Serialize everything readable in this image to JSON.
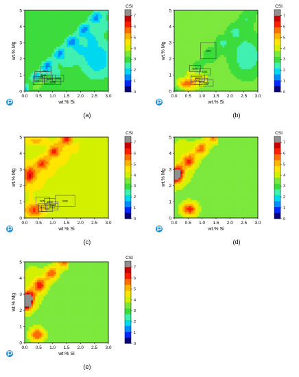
{
  "colors": {
    "scale": [
      "#08007a",
      "#0028ff",
      "#008cff",
      "#00d8f0",
      "#40f0b0",
      "#3cdc3c",
      "#7ce83c",
      "#d2f000",
      "#ffe600",
      "#ffb400",
      "#ff6e00",
      "#ff1e00",
      "#c80000",
      "#909090"
    ]
  },
  "chart_data": [
    {
      "type": "heatmap",
      "panel_label": "(a)",
      "xlabel": "wt.% Si",
      "ylabel": "wt.% Mg",
      "xlim": [
        0,
        3.0
      ],
      "ylim": [
        0,
        5
      ],
      "x_ticks": [
        "0.0",
        "0.5",
        "1.0",
        "1.5",
        "2.0",
        "2.5",
        "3.0"
      ],
      "y_ticks": [
        "0",
        "1",
        "2",
        "3",
        "4",
        "5"
      ],
      "colorbar_title": "CSI",
      "colorbar_range": [
        0,
        7
      ],
      "colorbar_ticks": [
        "0",
        "1",
        "2",
        "3",
        "4",
        "5",
        "6",
        "7"
      ],
      "base_value": 3.2,
      "features": [
        {
          "kind": "ridge",
          "slope": 1.73,
          "intercept": 0.2,
          "width": 0.17,
          "amp": -1.8,
          "extent": [
            0.0,
            3.0
          ]
        },
        {
          "kind": "ridge",
          "slope": 1.73,
          "intercept": -0.75,
          "width": 0.25,
          "amp": -0.9,
          "extent": [
            0.4,
            3.0
          ]
        },
        {
          "kind": "blob",
          "cx": 2.6,
          "cy": 2.0,
          "sx": 0.45,
          "sy": 0.9,
          "amp": -1.6
        },
        {
          "kind": "blob",
          "cx": 0.5,
          "cy": 0.5,
          "sx": 0.25,
          "sy": 0.3,
          "amp": 1.2
        }
      ],
      "boxes": [
        {
          "label": "6063",
          "x": [
            0.3,
            0.65
          ],
          "y": [
            0.4,
            0.9
          ]
        },
        {
          "label": "6005",
          "x": [
            0.55,
            0.95
          ],
          "y": [
            1.0,
            1.5
          ]
        },
        {
          "label": "6101",
          "x": [
            0.35,
            0.8
          ],
          "y": [
            0.6,
            1.2
          ]
        },
        {
          "label": "6061",
          "x": [
            0.4,
            0.95
          ],
          "y": [
            0.8,
            1.2
          ]
        },
        {
          "label": "6082",
          "x": [
            1.0,
            1.4
          ],
          "y": [
            0.6,
            1.0
          ]
        },
        {
          "label": "6013",
          "x": [
            0.7,
            1.1
          ],
          "y": [
            0.5,
            1.0
          ]
        },
        {
          "label": "6351",
          "x": [
            0.7,
            1.3
          ],
          "y": [
            0.4,
            0.8
          ]
        }
      ]
    },
    {
      "type": "heatmap",
      "panel_label": "(b)",
      "xlabel": "wt.% Si",
      "ylabel": "wt.% Mg",
      "xlim": [
        0,
        3.0
      ],
      "ylim": [
        0,
        5
      ],
      "x_ticks": [
        "0.0",
        "0.5",
        "1.0",
        "1.5",
        "2.0",
        "2.5",
        "3.0"
      ],
      "y_ticks": [
        "0",
        "1",
        "2",
        "3",
        "4",
        "5"
      ],
      "colorbar_title": "CSI",
      "colorbar_range": [
        0,
        7
      ],
      "colorbar_ticks": [
        "0",
        "1",
        "2",
        "3",
        "4",
        "5",
        "6",
        "7"
      ],
      "base_value": 3.6,
      "features": [
        {
          "kind": "ridge",
          "slope": 1.73,
          "intercept": 0.0,
          "width": 0.25,
          "amp": -0.9,
          "extent": [
            0.0,
            3.0
          ]
        },
        {
          "kind": "blob",
          "cx": 2.6,
          "cy": 2.2,
          "sx": 0.45,
          "sy": 1.0,
          "amp": -1.4
        },
        {
          "kind": "blob",
          "cx": 0.45,
          "cy": 0.5,
          "sx": 0.2,
          "sy": 0.22,
          "amp": 2.8
        },
        {
          "kind": "blob",
          "cx": 0.7,
          "cy": 0.9,
          "sx": 0.3,
          "sy": 0.4,
          "amp": 1.0
        }
      ],
      "boxes": [
        {
          "label": "6061",
          "x": [
            0.95,
            1.5
          ],
          "y": [
            2.0,
            3.0
          ]
        },
        {
          "label": "6005",
          "x": [
            0.55,
            0.95
          ],
          "y": [
            1.2,
            1.6
          ]
        },
        {
          "label": "6351",
          "x": [
            0.9,
            1.3
          ],
          "y": [
            1.0,
            1.4
          ]
        },
        {
          "label": "6063",
          "x": [
            0.6,
            1.0
          ],
          "y": [
            0.4,
            0.9
          ]
        },
        {
          "label": "6082",
          "x": [
            0.6,
            1.1
          ],
          "y": [
            0.6,
            1.0
          ]
        },
        {
          "label": "6101",
          "x": [
            0.75,
            1.2
          ],
          "y": [
            0.4,
            0.8
          ]
        },
        {
          "label": "6013",
          "x": [
            0.9,
            1.4
          ],
          "y": [
            0.3,
            0.7
          ]
        }
      ]
    },
    {
      "type": "heatmap",
      "panel_label": "(c)",
      "xlabel": "wt.% Si",
      "ylabel": "wt.% Mg",
      "xlim": [
        0,
        3.0
      ],
      "ylim": [
        0,
        5
      ],
      "x_ticks": [
        "0.0",
        "0.5",
        "1.0",
        "1.5",
        "2.0",
        "2.5",
        "3.0"
      ],
      "y_ticks": [
        "0",
        "1",
        "2",
        "3",
        "4",
        "5"
      ],
      "colorbar_title": "CSI",
      "colorbar_range": [
        0,
        7
      ],
      "colorbar_ticks": [
        "0",
        "1",
        "2",
        "3",
        "4",
        "5",
        "6",
        "7"
      ],
      "base_value": 4.0,
      "features": [
        {
          "kind": "ridge",
          "slope": 1.73,
          "intercept": 2.3,
          "width": 0.2,
          "amp": 2.3,
          "extent": [
            0.0,
            1.6
          ]
        },
        {
          "kind": "ridge",
          "slope": 1.73,
          "intercept": 1.2,
          "width": 0.16,
          "amp": 0.8,
          "extent": [
            0.3,
            1.8
          ]
        },
        {
          "kind": "blob",
          "cx": 0.4,
          "cy": 4.8,
          "sx": 0.3,
          "sy": 0.2,
          "amp": 1.2
        },
        {
          "kind": "blob",
          "cx": 0.35,
          "cy": 0.5,
          "sx": 0.25,
          "sy": 0.3,
          "amp": 2.2
        },
        {
          "kind": "blob",
          "cx": 0.1,
          "cy": 3.0,
          "sx": 0.2,
          "sy": 0.5,
          "amp": 0.8
        }
      ],
      "boxes": [
        {
          "label": "6005",
          "x": [
            0.7,
            1.1
          ],
          "y": [
            0.8,
            1.2
          ]
        },
        {
          "label": "6061",
          "x": [
            0.4,
            0.9
          ],
          "y": [
            0.8,
            1.3
          ]
        },
        {
          "label": "6063",
          "x": [
            0.5,
            0.8
          ],
          "y": [
            0.4,
            0.9
          ]
        },
        {
          "label": "6082",
          "x": [
            0.8,
            1.2
          ],
          "y": [
            0.6,
            1.0
          ]
        },
        {
          "label": "6101",
          "x": [
            0.6,
            1.0
          ],
          "y": [
            0.4,
            0.8
          ]
        },
        {
          "label": "6013",
          "x": [
            0.75,
            1.2
          ],
          "y": [
            0.5,
            0.9
          ]
        },
        {
          "label": "6066",
          "x": [
            1.1,
            1.8
          ],
          "y": [
            0.7,
            1.4
          ]
        }
      ]
    },
    {
      "type": "heatmap",
      "panel_label": "(d)",
      "xlabel": "wt.% Si",
      "ylabel": "wt.% Mg",
      "xlim": [
        0,
        3.0
      ],
      "ylim": [
        0,
        5
      ],
      "x_ticks": [
        "0.0",
        "0.5",
        "1.0",
        "1.5",
        "2.0",
        "2.5",
        "3.0"
      ],
      "y_ticks": [
        "0",
        "1",
        "2",
        "3",
        "4",
        "5"
      ],
      "colorbar_title": "CSI",
      "colorbar_range": [
        0,
        7
      ],
      "colorbar_ticks": [
        "0",
        "1",
        "2",
        "3",
        "4",
        "5",
        "6",
        "7"
      ],
      "base_value": 3.4,
      "features": [
        {
          "kind": "ridge",
          "slope": 1.73,
          "intercept": 2.6,
          "width": 0.2,
          "amp": 2.4,
          "extent": [
            0.0,
            1.4
          ]
        },
        {
          "kind": "blob",
          "cx": 0.08,
          "cy": 2.6,
          "sx": 0.15,
          "sy": 0.35,
          "amp": 2.6
        },
        {
          "kind": "blob",
          "cx": 0.55,
          "cy": 0.55,
          "sx": 0.2,
          "sy": 0.3,
          "amp": 3.0
        },
        {
          "kind": "blob",
          "cx": 0.3,
          "cy": 3.5,
          "sx": 0.4,
          "sy": 1.3,
          "amp": 0.7
        }
      ],
      "boxes": []
    },
    {
      "type": "heatmap",
      "panel_label": "(e)",
      "xlabel": "wt.% Si",
      "ylabel": "wt.% Mg",
      "xlim": [
        0,
        3.0
      ],
      "ylim": [
        0,
        5
      ],
      "x_ticks": [
        "0.0",
        "0.5",
        "1.0",
        "1.5",
        "2.0",
        "2.5",
        "3.0"
      ],
      "y_ticks": [
        "0",
        "1",
        "2",
        "3",
        "4",
        "5"
      ],
      "colorbar_title": "CSI",
      "colorbar_range": [
        0,
        7
      ],
      "colorbar_ticks": [
        "0",
        "1",
        "2",
        "3",
        "4",
        "5",
        "6",
        "7"
      ],
      "base_value": 3.3,
      "features": [
        {
          "kind": "ridge",
          "slope": 1.73,
          "intercept": 2.6,
          "width": 0.2,
          "amp": 2.6,
          "extent": [
            0.0,
            1.4
          ]
        },
        {
          "kind": "blob",
          "cx": 0.08,
          "cy": 2.5,
          "sx": 0.15,
          "sy": 0.35,
          "amp": 3.9
        },
        {
          "kind": "blob",
          "cx": 0.45,
          "cy": 0.5,
          "sx": 0.2,
          "sy": 0.3,
          "amp": 2.8
        },
        {
          "kind": "blob",
          "cx": 0.3,
          "cy": 3.5,
          "sx": 0.4,
          "sy": 1.3,
          "amp": 0.8
        }
      ],
      "boxes": []
    }
  ]
}
